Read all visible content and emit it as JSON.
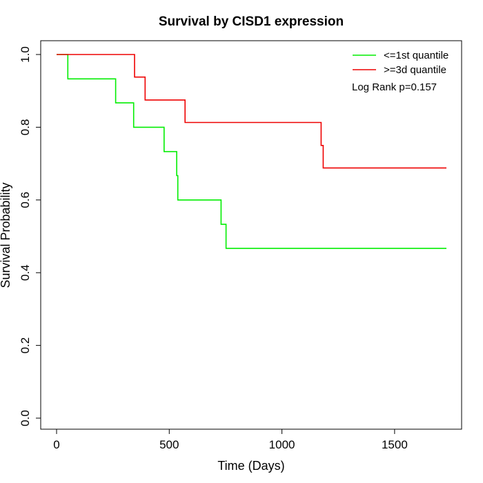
{
  "chart_data": {
    "type": "line",
    "title": "Survival by CISD1 expression",
    "xlabel": "Time (Days)",
    "ylabel": "Survival Probability",
    "xlim": [
      0,
      1730
    ],
    "ylim": [
      0,
      1
    ],
    "x_ticks": [
      0,
      500,
      1000,
      1500
    ],
    "y_ticks": [
      0.0,
      0.2,
      0.4,
      0.6,
      0.8,
      1.0
    ],
    "x_tick_labels": [
      "0",
      "500",
      "1000",
      "1500"
    ],
    "y_tick_labels": [
      "0.0",
      "0.2",
      "0.4",
      "0.6",
      "0.8",
      "1.0"
    ],
    "grid": false,
    "legend_position": "top-right",
    "annotation": "Log Rank p=0.157",
    "series": [
      {
        "name": "<=1st quantile",
        "color": "#00ee00",
        "x": [
          0,
          50,
          50,
          262,
          262,
          342,
          342,
          477,
          477,
          533,
          533,
          538,
          538,
          730,
          730,
          752,
          752,
          1730
        ],
        "y": [
          1.0,
          1.0,
          0.933,
          0.933,
          0.867,
          0.867,
          0.8,
          0.8,
          0.733,
          0.733,
          0.667,
          0.667,
          0.6,
          0.6,
          0.533,
          0.533,
          0.467,
          0.467
        ]
      },
      {
        "name": ">=3d quantile",
        "color": "#ee0000",
        "x": [
          0,
          346,
          346,
          393,
          393,
          570,
          570,
          1174,
          1174,
          1183,
          1183,
          1730
        ],
        "y": [
          1.0,
          1.0,
          0.938,
          0.938,
          0.875,
          0.875,
          0.813,
          0.813,
          0.75,
          0.75,
          0.688,
          0.688
        ]
      }
    ]
  }
}
